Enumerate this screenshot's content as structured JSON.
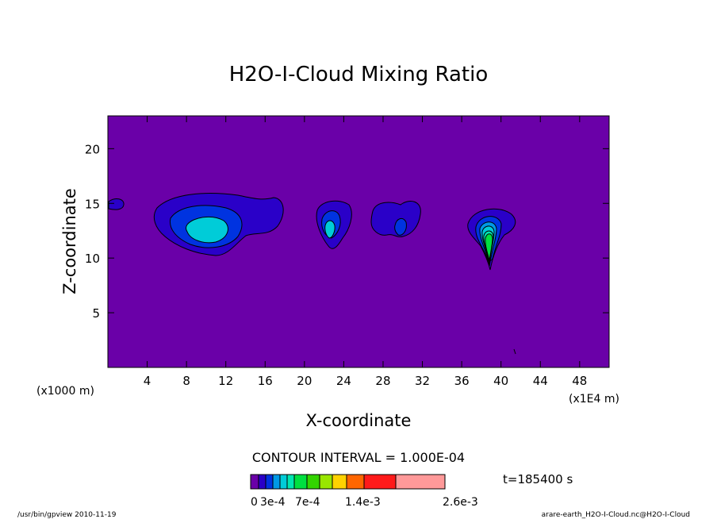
{
  "chart_data": {
    "type": "contour",
    "title": "H2O-I-Cloud Mixing Ratio",
    "xlabel": "X-coordinate",
    "ylabel": "Z-coordinate",
    "x_unit_label": "(x1E4 m)",
    "y_unit_label": "(x1000 m)",
    "xlim": [
      0,
      51
    ],
    "ylim": [
      0,
      23
    ],
    "xticks": [
      4,
      8,
      12,
      16,
      20,
      24,
      28,
      32,
      36,
      40,
      44,
      48
    ],
    "yticks": [
      5,
      10,
      15,
      20
    ],
    "contour_interval_label": "CONTOUR INTERVAL = 1.000E-04",
    "time_label": "t=185400 s",
    "colorbar": {
      "colors": [
        "#6a00a8",
        "#2a00c8",
        "#0033e0",
        "#0099e6",
        "#00ccd8",
        "#00e6b0",
        "#00e040",
        "#33d400",
        "#99e600",
        "#ffd200",
        "#ff6600",
        "#ff1a1a",
        "#ff9999"
      ],
      "labels": [
        "0",
        "3e-4",
        "7e-4",
        "1.4e-3",
        "2.6e-3"
      ]
    },
    "cells": [
      {
        "x": 10,
        "z": 12.5,
        "peak": "3e-4"
      },
      {
        "x": 23,
        "z": 12.7,
        "peak": "3e-4"
      },
      {
        "x": 30,
        "z": 12.8,
        "peak": "2e-4"
      },
      {
        "x": 39,
        "z": 11.8,
        "peak": "7e-4"
      }
    ],
    "background_color": "#6a00a8"
  },
  "footer": {
    "left": "/usr/bin/gpview   2010-11-19",
    "right": "arare-earth_H2O-I-Cloud.nc@H2O-I-Cloud"
  }
}
